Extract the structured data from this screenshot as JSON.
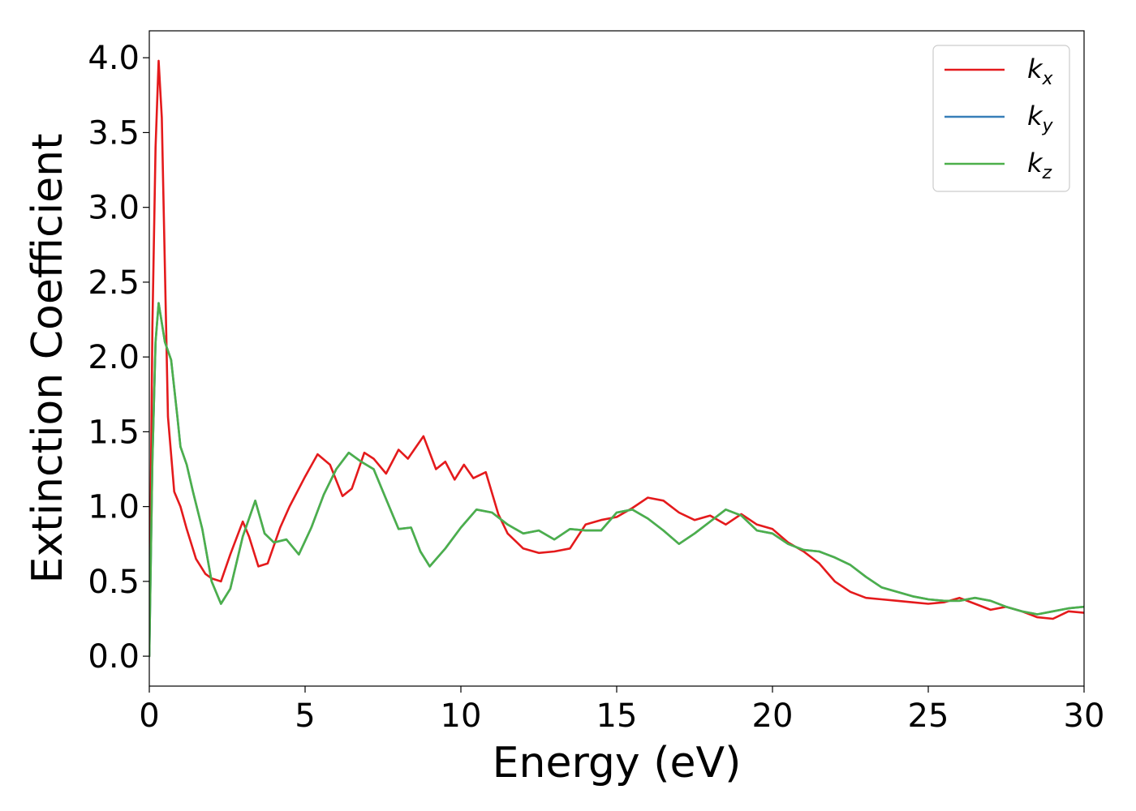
{
  "chart_data": {
    "type": "line",
    "title": "",
    "xlabel": "Energy (eV)",
    "ylabel": "Extinction Coefficient",
    "xlim": [
      0,
      30
    ],
    "ylim": [
      -0.2,
      4.18
    ],
    "xticks": [
      0,
      5,
      10,
      15,
      20,
      25,
      30
    ],
    "xtick_labels": [
      "0",
      "5",
      "10",
      "15",
      "20",
      "25",
      "30"
    ],
    "yticks": [
      0.0,
      0.5,
      1.0,
      1.5,
      2.0,
      2.5,
      3.0,
      3.5,
      4.0
    ],
    "ytick_labels": [
      "0.0",
      "0.5",
      "1.0",
      "1.5",
      "2.0",
      "2.5",
      "3.0",
      "3.5",
      "4.0"
    ],
    "grid": false,
    "legend": "top-right",
    "series": [
      {
        "name": "k_x",
        "label_main": "k",
        "label_sub": "x",
        "color": "#e41a1c",
        "x": [
          0,
          0.1,
          0.2,
          0.3,
          0.4,
          0.5,
          0.6,
          0.8,
          1.0,
          1.2,
          1.5,
          1.8,
          2.0,
          2.3,
          2.6,
          3.0,
          3.2,
          3.5,
          3.8,
          4.2,
          4.5,
          5.0,
          5.4,
          5.8,
          6.2,
          6.5,
          6.9,
          7.2,
          7.6,
          8.0,
          8.3,
          8.8,
          9.2,
          9.5,
          9.8,
          10.1,
          10.4,
          10.8,
          11.2,
          11.5,
          12.0,
          12.5,
          13.0,
          13.5,
          14.0,
          14.5,
          15.0,
          15.5,
          16.0,
          16.5,
          17.0,
          17.5,
          18.0,
          18.5,
          19.0,
          19.5,
          20.0,
          20.5,
          21.0,
          21.5,
          22.0,
          22.5,
          23.0,
          23.5,
          24.0,
          24.5,
          25.0,
          25.5,
          26.0,
          26.5,
          27.0,
          27.5,
          28.0,
          28.5,
          29.0,
          29.5,
          30.0
        ],
        "values": [
          0.0,
          2.2,
          3.4,
          3.98,
          3.6,
          2.6,
          1.6,
          1.1,
          1.0,
          0.85,
          0.65,
          0.55,
          0.52,
          0.5,
          0.68,
          0.9,
          0.8,
          0.6,
          0.62,
          0.86,
          1.0,
          1.2,
          1.35,
          1.28,
          1.07,
          1.12,
          1.36,
          1.32,
          1.22,
          1.38,
          1.32,
          1.47,
          1.25,
          1.3,
          1.18,
          1.28,
          1.19,
          1.23,
          0.95,
          0.82,
          0.72,
          0.69,
          0.7,
          0.72,
          0.88,
          0.91,
          0.93,
          0.99,
          1.06,
          1.04,
          0.96,
          0.91,
          0.94,
          0.88,
          0.95,
          0.88,
          0.85,
          0.76,
          0.7,
          0.62,
          0.5,
          0.43,
          0.39,
          0.38,
          0.37,
          0.36,
          0.35,
          0.36,
          0.39,
          0.35,
          0.31,
          0.33,
          0.3,
          0.26,
          0.25,
          0.3,
          0.29
        ]
      },
      {
        "name": "k_y",
        "label_main": "k",
        "label_sub": "y",
        "color": "#377eb8",
        "x": [
          0,
          0.1,
          0.2,
          0.3,
          0.5,
          0.7,
          0.9,
          1.0,
          1.2,
          1.4,
          1.7,
          2.0,
          2.3,
          2.6,
          3.0,
          3.4,
          3.7,
          4.0,
          4.4,
          4.8,
          5.2,
          5.6,
          6.0,
          6.4,
          6.8,
          7.2,
          7.6,
          8.0,
          8.4,
          8.7,
          9.0,
          9.5,
          10.0,
          10.5,
          11.0,
          11.5,
          12.0,
          12.5,
          13.0,
          13.5,
          14.0,
          14.5,
          15.0,
          15.5,
          16.0,
          16.5,
          17.0,
          17.5,
          18.0,
          18.5,
          19.0,
          19.5,
          20.0,
          20.5,
          21.0,
          21.5,
          22.0,
          22.5,
          23.0,
          23.5,
          24.0,
          24.5,
          25.0,
          25.5,
          26.0,
          26.5,
          27.0,
          27.5,
          28.0,
          28.5,
          29.0,
          29.5,
          30.0
        ],
        "values": [
          0.0,
          1.3,
          2.1,
          2.36,
          2.1,
          1.98,
          1.6,
          1.4,
          1.28,
          1.1,
          0.85,
          0.5,
          0.35,
          0.45,
          0.8,
          1.04,
          0.82,
          0.76,
          0.78,
          0.68,
          0.86,
          1.08,
          1.25,
          1.36,
          1.3,
          1.25,
          1.05,
          0.85,
          0.86,
          0.7,
          0.6,
          0.72,
          0.86,
          0.98,
          0.96,
          0.88,
          0.82,
          0.84,
          0.78,
          0.85,
          0.84,
          0.84,
          0.96,
          0.98,
          0.92,
          0.84,
          0.75,
          0.82,
          0.9,
          0.98,
          0.94,
          0.84,
          0.82,
          0.75,
          0.71,
          0.7,
          0.66,
          0.61,
          0.53,
          0.46,
          0.43,
          0.4,
          0.38,
          0.37,
          0.37,
          0.39,
          0.37,
          0.33,
          0.3,
          0.28,
          0.3,
          0.32,
          0.33
        ]
      },
      {
        "name": "k_z",
        "label_main": "k",
        "label_sub": "z",
        "color": "#4daf4a",
        "x": [
          0,
          0.1,
          0.2,
          0.3,
          0.5,
          0.7,
          0.9,
          1.0,
          1.2,
          1.4,
          1.7,
          2.0,
          2.3,
          2.6,
          3.0,
          3.4,
          3.7,
          4.0,
          4.4,
          4.8,
          5.2,
          5.6,
          6.0,
          6.4,
          6.8,
          7.2,
          7.6,
          8.0,
          8.4,
          8.7,
          9.0,
          9.5,
          10.0,
          10.5,
          11.0,
          11.5,
          12.0,
          12.5,
          13.0,
          13.5,
          14.0,
          14.5,
          15.0,
          15.5,
          16.0,
          16.5,
          17.0,
          17.5,
          18.0,
          18.5,
          19.0,
          19.5,
          20.0,
          20.5,
          21.0,
          21.5,
          22.0,
          22.5,
          23.0,
          23.5,
          24.0,
          24.5,
          25.0,
          25.5,
          26.0,
          26.5,
          27.0,
          27.5,
          28.0,
          28.5,
          29.0,
          29.5,
          30.0
        ],
        "values": [
          0.0,
          1.3,
          2.1,
          2.36,
          2.1,
          1.98,
          1.6,
          1.4,
          1.28,
          1.1,
          0.85,
          0.5,
          0.35,
          0.45,
          0.8,
          1.04,
          0.82,
          0.76,
          0.78,
          0.68,
          0.86,
          1.08,
          1.25,
          1.36,
          1.3,
          1.25,
          1.05,
          0.85,
          0.86,
          0.7,
          0.6,
          0.72,
          0.86,
          0.98,
          0.96,
          0.88,
          0.82,
          0.84,
          0.78,
          0.85,
          0.84,
          0.84,
          0.96,
          0.98,
          0.92,
          0.84,
          0.75,
          0.82,
          0.9,
          0.98,
          0.94,
          0.84,
          0.82,
          0.75,
          0.71,
          0.7,
          0.66,
          0.61,
          0.53,
          0.46,
          0.43,
          0.4,
          0.38,
          0.37,
          0.37,
          0.39,
          0.37,
          0.33,
          0.3,
          0.28,
          0.3,
          0.32,
          0.33
        ]
      }
    ]
  }
}
